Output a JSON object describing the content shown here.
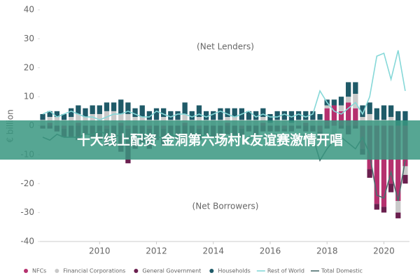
{
  "chart_data": {
    "type": "stacked-bar-line",
    "y_label": "€ billion",
    "annotations": [
      "(Net Lenders)",
      "(Net Borrowers)"
    ],
    "overlay_text": "十大线上配资 金洞第六场村k友谊赛激情开唱",
    "x": [
      2008,
      2008.25,
      2008.5,
      2008.75,
      2009,
      2009.25,
      2009.5,
      2009.75,
      2010,
      2010.25,
      2010.5,
      2010.75,
      2011,
      2011.25,
      2011.5,
      2011.75,
      2012,
      2012.25,
      2012.5,
      2012.75,
      2013,
      2013.25,
      2013.5,
      2013.75,
      2014,
      2014.25,
      2014.5,
      2014.75,
      2015,
      2015.25,
      2015.5,
      2015.75,
      2016,
      2016.25,
      2016.5,
      2016.75,
      2017,
      2017.25,
      2017.5,
      2017.75,
      2018,
      2018.25,
      2018.5,
      2018.75,
      2019,
      2019.25,
      2019.5,
      2019.75,
      2020,
      2020.25,
      2020.5,
      2020.75
    ],
    "xlim": [
      2007.9,
      2020.9
    ],
    "xticks": [
      2010,
      2012,
      2014,
      2016,
      2018,
      2020
    ],
    "ylim": [
      -40,
      40
    ],
    "yticks": [
      -40,
      -30,
      -20,
      -10,
      0,
      10,
      20,
      30,
      40
    ],
    "series": [
      {
        "name": "NFCs",
        "kind": "bar",
        "color": "#b5306e",
        "values": [
          0,
          1,
          0,
          -1,
          0,
          1,
          0,
          0,
          0,
          -1,
          0,
          1,
          -1,
          0,
          0,
          -1,
          0,
          -1,
          0,
          0,
          1,
          0,
          -1,
          0,
          0,
          0,
          1,
          0,
          -1,
          0,
          0,
          1,
          0,
          0,
          -1,
          0,
          0,
          1,
          0,
          -2,
          6,
          7,
          5,
          8,
          6,
          -8,
          -15,
          -27,
          -28,
          -20,
          -26,
          -14
        ]
      },
      {
        "name": "Financial Corporations",
        "kind": "bar",
        "color": "#c9c9c9",
        "values": [
          2,
          2,
          3,
          2,
          3,
          3,
          3,
          4,
          4,
          5,
          5,
          3,
          4,
          3,
          3,
          2,
          2,
          3,
          2,
          2,
          3,
          2,
          3,
          2,
          2,
          2,
          2,
          3,
          2,
          2,
          2,
          2,
          1,
          2,
          2,
          1,
          2,
          1,
          2,
          2,
          1,
          -3,
          2,
          2,
          5,
          3,
          4,
          2,
          2,
          3,
          -4,
          -3
        ]
      },
      {
        "name": "General Government",
        "kind": "bar",
        "color": "#6a1f4e",
        "values": [
          -1,
          -1,
          -2,
          -3,
          -4,
          -5,
          -3,
          -4,
          -5,
          -6,
          -7,
          -9,
          -12,
          -8,
          -6,
          -7,
          -5,
          -6,
          -4,
          -5,
          -5,
          -4,
          -4,
          -3,
          -4,
          -3,
          -3,
          -4,
          -3,
          -2,
          -3,
          -2,
          -2,
          -2,
          -1,
          -2,
          -1,
          -2,
          -2,
          -3,
          -1,
          -2,
          -1,
          -3,
          -1,
          -2,
          -3,
          -2,
          -2,
          -3,
          -2,
          -3
        ]
      },
      {
        "name": "Households",
        "kind": "bar",
        "color": "#1f5a68",
        "values": [
          2,
          2,
          2,
          2,
          3,
          3,
          3,
          3,
          3,
          3,
          3,
          5,
          4,
          3,
          4,
          3,
          4,
          3,
          3,
          3,
          4,
          3,
          4,
          3,
          3,
          4,
          3,
          3,
          4,
          3,
          3,
          3,
          3,
          3,
          3,
          4,
          3,
          3,
          3,
          2,
          2,
          2,
          3,
          5,
          4,
          4,
          4,
          4,
          5,
          4,
          5,
          5
        ]
      },
      {
        "name": "Rest of World",
        "kind": "line",
        "color": "#86d8d8",
        "values": [
          4,
          5,
          3,
          4,
          5,
          4,
          3,
          3,
          2,
          3,
          4,
          4,
          5,
          4,
          3,
          3,
          5,
          4,
          3,
          4,
          4,
          3,
          4,
          3,
          4,
          5,
          4,
          3,
          4,
          5,
          3,
          4,
          3,
          3,
          4,
          3,
          4,
          3,
          4,
          12,
          8,
          5,
          4,
          6,
          8,
          4,
          10,
          24,
          25,
          16,
          26,
          12
        ]
      },
      {
        "name": "Total Domestic",
        "kind": "line",
        "color": "#4c6e6e",
        "values": [
          -4,
          -5,
          -3,
          -4,
          -4,
          -4,
          -3,
          -3,
          -2,
          -3,
          -4,
          -3,
          -5,
          -4,
          -3,
          -3,
          -4,
          -4,
          -3,
          -4,
          -4,
          -3,
          -4,
          -3,
          -4,
          -5,
          -4,
          -3,
          -4,
          -5,
          -3,
          -4,
          -3,
          -3,
          -4,
          -3,
          -4,
          -3,
          -4,
          -12,
          -8,
          -5,
          -4,
          -6,
          -8,
          -4,
          -10,
          -24,
          -25,
          -16,
          -26,
          -12
        ]
      }
    ]
  }
}
